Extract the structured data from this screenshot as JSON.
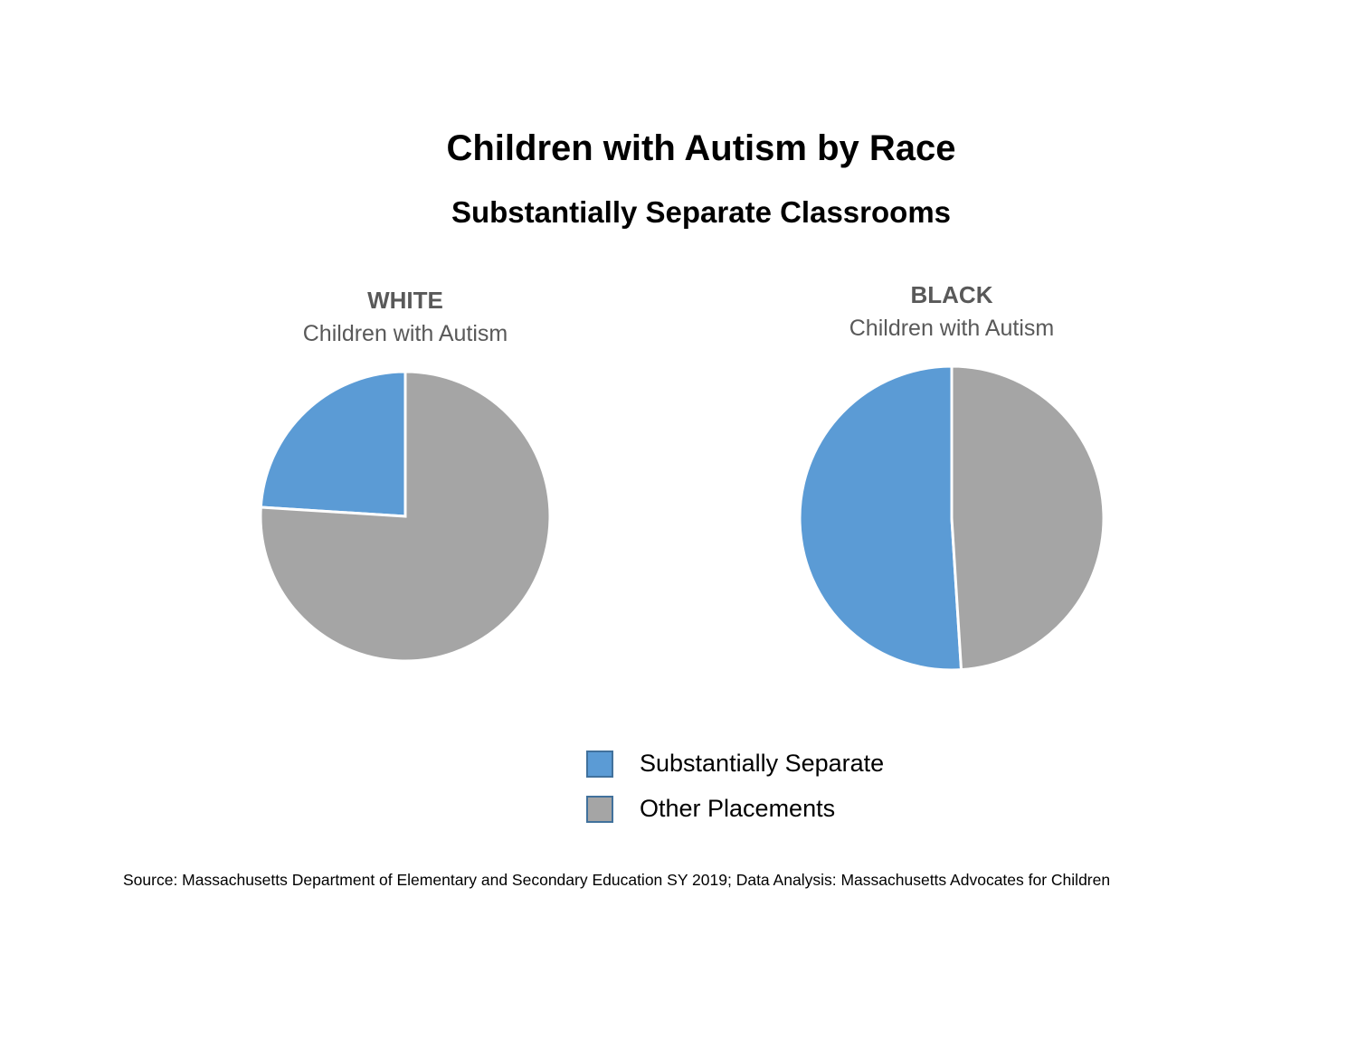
{
  "chart_data": {
    "type": "pie",
    "title": "Children with Autism by Race",
    "subtitle": "Substantially Separate Classrooms",
    "legend": [
      "Substantially Separate",
      "Other Placements"
    ],
    "legend_position": "bottom",
    "colors": {
      "Substantially Separate": "#5B9BD5",
      "Other Placements": "#A5A5A5"
    },
    "charts": [
      {
        "group": "WHITE",
        "subtitle": "Children with Autism",
        "slices": [
          {
            "label": "Substantially Separate",
            "value": 24
          },
          {
            "label": "Other Placements",
            "value": 76
          }
        ]
      },
      {
        "group": "BLACK",
        "subtitle": "Children with Autism",
        "slices": [
          {
            "label": "Substantially Separate",
            "value": 51
          },
          {
            "label": "Other Placements",
            "value": 49
          }
        ]
      }
    ]
  },
  "source": "Source: Massachusetts Department of Elementary and Secondary Education SY 2019; Data Analysis: Massachusetts Advocates for Children"
}
